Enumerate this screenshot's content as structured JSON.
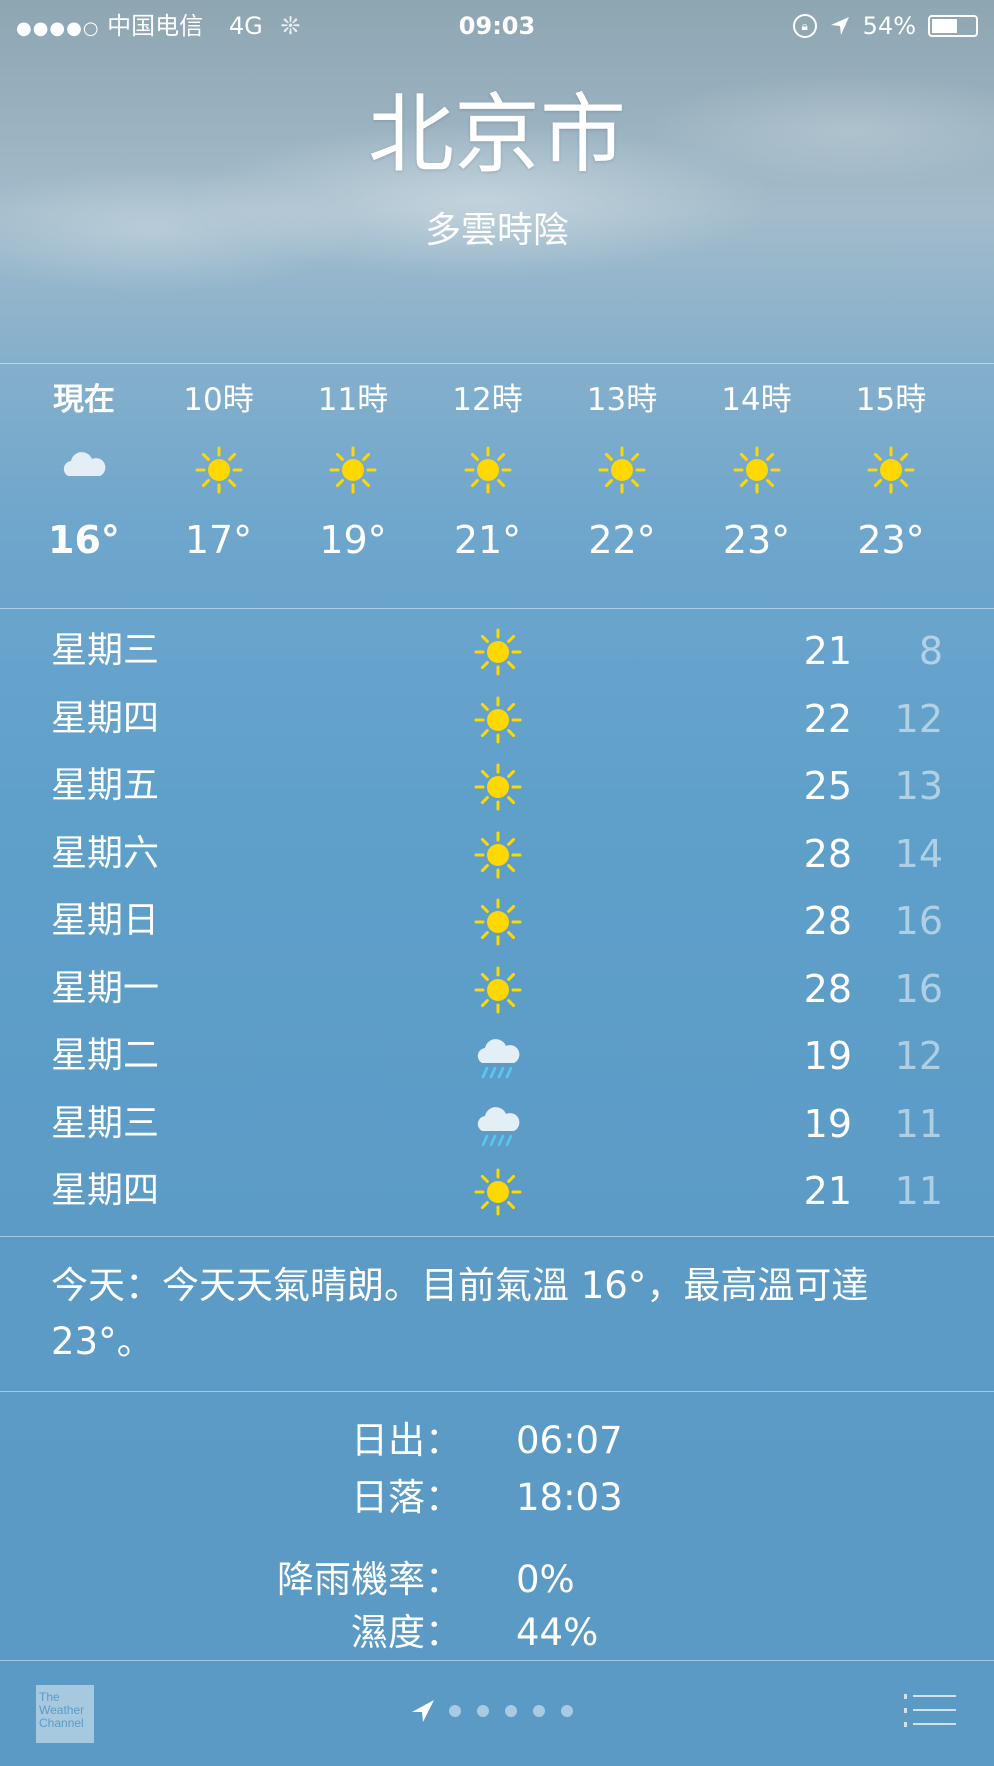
{
  "status_bar": {
    "signal": "●●●●○",
    "carrier": "中国电信",
    "network": "4G",
    "time": "09:03",
    "battery": "54%",
    "icons": [
      "orientation-lock-icon",
      "location-arrow-icon",
      "battery-icon",
      "activity-spinner-icon"
    ]
  },
  "header": {
    "city": "北京市",
    "condition": "多雲時陰"
  },
  "hourly": [
    {
      "label": "現在",
      "icon": "cloud",
      "temp": "16°"
    },
    {
      "label": "10時",
      "icon": "sun",
      "temp": "17°"
    },
    {
      "label": "11時",
      "icon": "sun",
      "temp": "19°"
    },
    {
      "label": "12時",
      "icon": "sun",
      "temp": "21°"
    },
    {
      "label": "13時",
      "icon": "sun",
      "temp": "22°"
    },
    {
      "label": "14時",
      "icon": "sun",
      "temp": "23°"
    },
    {
      "label": "15時",
      "icon": "sun",
      "temp": "23°"
    }
  ],
  "daily": [
    {
      "day": "星期三",
      "icon": "sun",
      "high": "21",
      "low": "8"
    },
    {
      "day": "星期四",
      "icon": "sun",
      "high": "22",
      "low": "12"
    },
    {
      "day": "星期五",
      "icon": "sun",
      "high": "25",
      "low": "13"
    },
    {
      "day": "星期六",
      "icon": "sun",
      "high": "28",
      "low": "14"
    },
    {
      "day": "星期日",
      "icon": "sun",
      "high": "28",
      "low": "16"
    },
    {
      "day": "星期一",
      "icon": "sun",
      "high": "28",
      "low": "16"
    },
    {
      "day": "星期二",
      "icon": "rain",
      "high": "19",
      "low": "12"
    },
    {
      "day": "星期三",
      "icon": "rain",
      "high": "19",
      "low": "11"
    },
    {
      "day": "星期四",
      "icon": "sun",
      "high": "21",
      "low": "11"
    }
  ],
  "summary": "今天：今天天氣晴朗。目前氣溫 16°，最高溫可達 23°。",
  "details": [
    {
      "label": "日出：",
      "value": "06:07"
    },
    {
      "label": "日落：",
      "value": "18:03"
    },
    {
      "label": "降雨機率：",
      "value": "0%"
    },
    {
      "label": "濕度：",
      "value": "44%"
    }
  ],
  "footer": {
    "logo": "The Weather Channel",
    "page_count": 5
  },
  "colors": {
    "sun": "#ffd800",
    "cloud": "#e3eef6",
    "rain": "#58c8f5",
    "background": "#5b9bc6"
  }
}
